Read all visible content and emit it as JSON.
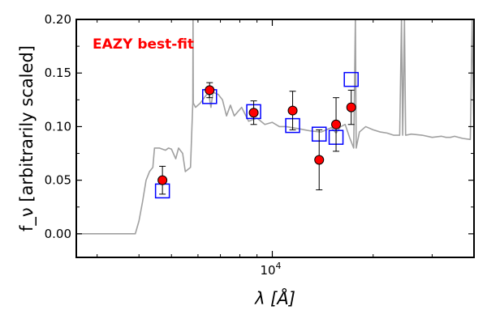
{
  "chart_data": {
    "type": "scatter",
    "title": "",
    "xlabel": "λ [Å]",
    "ylabel": "f_ν [arbitrarily scaled]",
    "xscale": "log",
    "xlim": [
      2600,
      40000
    ],
    "ylim": [
      -0.022,
      0.2
    ],
    "x_tick_labels": [
      {
        "value": 10000,
        "label": "10",
        "exponent": "4"
      }
    ],
    "y_ticks": [
      0.0,
      0.05,
      0.1,
      0.15,
      0.2
    ],
    "y_tick_labels": [
      "0.00",
      "0.05",
      "0.10",
      "0.15",
      "0.20"
    ],
    "grid": false,
    "annotation": {
      "text": "EAZY best-fit",
      "color": "#ff0000"
    },
    "colors": {
      "model": "#a0a0a0",
      "observed_fill": "#ff0000",
      "model_photometry_stroke": "#0000ff",
      "axes": "#000000"
    },
    "series": [
      {
        "kind": "line",
        "style": "model spectrum",
        "points": [
          [
            2600,
            0.0
          ],
          [
            3900,
            0.0
          ],
          [
            4000,
            0.012
          ],
          [
            4100,
            0.03
          ],
          [
            4200,
            0.05
          ],
          [
            4300,
            0.058
          ],
          [
            4400,
            0.062
          ],
          [
            4450,
            0.08
          ],
          [
            4600,
            0.08
          ],
          [
            4800,
            0.078
          ],
          [
            4900,
            0.08
          ],
          [
            5000,
            0.079
          ],
          [
            5150,
            0.07
          ],
          [
            5250,
            0.08
          ],
          [
            5400,
            0.075
          ],
          [
            5500,
            0.058
          ],
          [
            5600,
            0.06
          ],
          [
            5700,
            0.062
          ],
          [
            5790,
            0.122
          ],
          [
            5800,
            0.2
          ],
          [
            5810,
            0.122
          ],
          [
            5900,
            0.118
          ],
          [
            6100,
            0.122
          ],
          [
            6300,
            0.128
          ],
          [
            6450,
            0.132
          ],
          [
            6560,
            0.118
          ],
          [
            6650,
            0.132
          ],
          [
            6900,
            0.13
          ],
          [
            7100,
            0.125
          ],
          [
            7300,
            0.11
          ],
          [
            7500,
            0.12
          ],
          [
            7700,
            0.11
          ],
          [
            8100,
            0.118
          ],
          [
            8500,
            0.105
          ],
          [
            9000,
            0.108
          ],
          [
            9500,
            0.102
          ],
          [
            10000,
            0.104
          ],
          [
            10500,
            0.1
          ],
          [
            11000,
            0.1
          ],
          [
            12000,
            0.098
          ],
          [
            13000,
            0.096
          ],
          [
            14000,
            0.095
          ],
          [
            15000,
            0.099
          ],
          [
            15500,
            0.094
          ],
          [
            16000,
            0.1
          ],
          [
            16500,
            0.102
          ],
          [
            17000,
            0.09
          ],
          [
            17500,
            0.08
          ],
          [
            17700,
            0.2
          ],
          [
            17800,
            0.08
          ],
          [
            18200,
            0.095
          ],
          [
            19000,
            0.1
          ],
          [
            20000,
            0.097
          ],
          [
            21000,
            0.095
          ],
          [
            22000,
            0.094
          ],
          [
            23000,
            0.092
          ],
          [
            24000,
            0.092
          ],
          [
            24300,
            0.2
          ],
          [
            24500,
            0.092
          ],
          [
            24800,
            0.2
          ],
          [
            25000,
            0.092
          ],
          [
            26000,
            0.093
          ],
          [
            28000,
            0.092
          ],
          [
            30000,
            0.09
          ],
          [
            32000,
            0.091
          ],
          [
            33000,
            0.09
          ],
          [
            34000,
            0.09
          ],
          [
            35000,
            0.091
          ],
          [
            37000,
            0.089
          ],
          [
            39000,
            0.088
          ],
          [
            39500,
            0.2
          ],
          [
            40000,
            0.088
          ]
        ]
      },
      {
        "kind": "model_photometry",
        "style": "open blue squares",
        "points": [
          [
            4700,
            0.04
          ],
          [
            6500,
            0.128
          ],
          [
            8800,
            0.114
          ],
          [
            11500,
            0.101
          ],
          [
            13800,
            0.093
          ],
          [
            15500,
            0.09
          ],
          [
            17200,
            0.144
          ]
        ]
      },
      {
        "kind": "observed_photometry",
        "style": "red circles with error bars",
        "points": [
          {
            "x": 4700,
            "y": 0.05,
            "yerr": 0.013
          },
          {
            "x": 6500,
            "y": 0.134,
            "yerr": 0.007
          },
          {
            "x": 8800,
            "y": 0.113,
            "yerr": 0.011
          },
          {
            "x": 11500,
            "y": 0.115,
            "yerr": 0.018
          },
          {
            "x": 13800,
            "y": 0.069,
            "yerr": 0.028
          },
          {
            "x": 15500,
            "y": 0.102,
            "yerr": 0.025
          },
          {
            "x": 17200,
            "y": 0.118,
            "yerr": 0.016
          }
        ]
      }
    ]
  }
}
